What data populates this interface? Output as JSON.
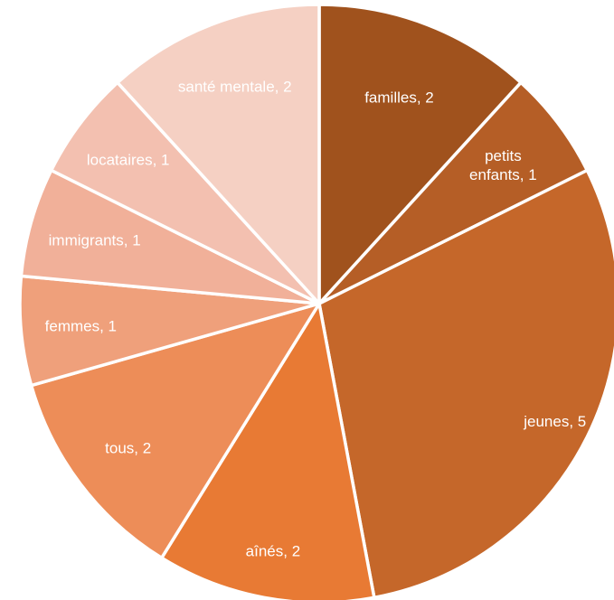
{
  "chart_data": {
    "type": "pie",
    "title": "",
    "start_angle_deg": 0,
    "direction": "clockwise",
    "slices": [
      {
        "label": "familles, 2",
        "category": "familles",
        "value": 2,
        "color": "#A0521D"
      },
      {
        "label": "petits enfants, 1",
        "label_lines": [
          "petits",
          "enfants, 1"
        ],
        "category": "petits enfants",
        "value": 1,
        "color": "#B55E26"
      },
      {
        "label": "jeunes, 5",
        "category": "jeunes",
        "value": 5,
        "color": "#C5672A"
      },
      {
        "label": "aînés, 2",
        "category": "aînés",
        "value": 2,
        "color": "#E87A34"
      },
      {
        "label": "tous, 2",
        "category": "tous",
        "value": 2,
        "color": "#ED8D58"
      },
      {
        "label": "femmes, 1",
        "category": "femmes",
        "value": 1,
        "color": "#EFA07B"
      },
      {
        "label": "immigrants, 1",
        "category": "immigrants",
        "value": 1,
        "color": "#F1B099"
      },
      {
        "label": "locataires, 1",
        "category": "locataires",
        "value": 1,
        "color": "#F3C0B0"
      },
      {
        "label": "santé mentale, 2",
        "category": "santé mentale",
        "value": 2,
        "color": "#F5D0C3"
      }
    ]
  }
}
